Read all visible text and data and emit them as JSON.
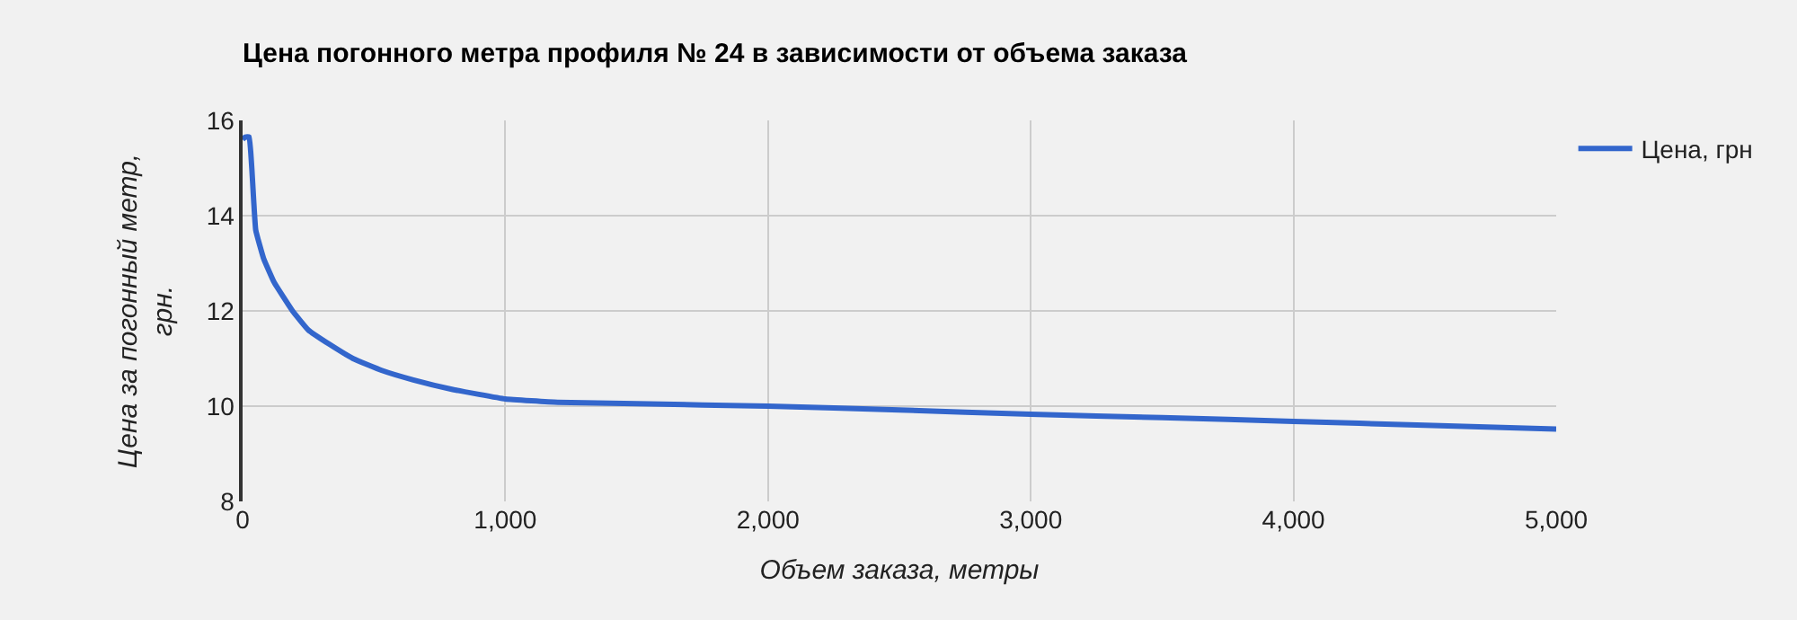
{
  "chart_data": {
    "type": "line",
    "title": "Цена погонного метра профиля № 24 в зависимости от объема заказа",
    "xlabel": "Объем заказа, метры",
    "ylabel": "Цена за погонный метр, грн.",
    "x": [
      0,
      10,
      25,
      35,
      50,
      80,
      120,
      190,
      250,
      330,
      420,
      530,
      650,
      800,
      1000,
      1200,
      1500,
      2000,
      2500,
      3000,
      3500,
      4000,
      4500,
      5000
    ],
    "series": [
      {
        "name": "Цена, грн",
        "color": "#3366cc",
        "values": [
          15.6,
          15.65,
          15.65,
          15,
          13.7,
          13.1,
          12.6,
          12.0,
          11.6,
          11.3,
          11.0,
          10.75,
          10.55,
          10.35,
          10.15,
          10.08,
          10.05,
          10.0,
          9.92,
          9.83,
          9.76,
          9.68,
          9.6,
          9.52
        ]
      }
    ],
    "xlim": [
      0,
      5000
    ],
    "xticks": [
      {
        "value": 0,
        "label": "0"
      },
      {
        "value": 1000,
        "label": "1,000"
      },
      {
        "value": 2000,
        "label": "2,000"
      },
      {
        "value": 3000,
        "label": "3,000"
      },
      {
        "value": 4000,
        "label": "4,000"
      },
      {
        "value": 5000,
        "label": "5,000"
      }
    ],
    "ylim": [
      8,
      16
    ],
    "yticks": [
      8,
      10,
      12,
      14,
      16
    ],
    "grid": true,
    "legend": "top right",
    "marker": "none",
    "line_style": "solid"
  }
}
